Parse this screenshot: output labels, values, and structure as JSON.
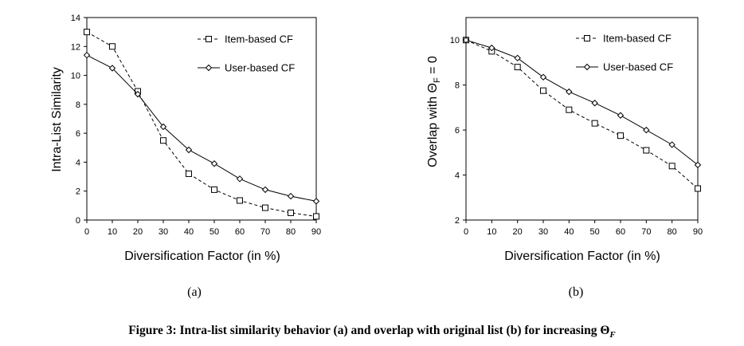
{
  "chart_data": [
    {
      "type": "line",
      "panel_label": "(a)",
      "x": [
        0,
        10,
        20,
        30,
        40,
        50,
        60,
        70,
        80,
        90
      ],
      "xlabel": "Diversification Factor (in %)",
      "ylabel": "Intra-List Similarity",
      "xticks": [
        "0",
        "10",
        "20",
        "30",
        "40",
        "50",
        "60",
        "70",
        "80",
        "90"
      ],
      "yticks": [
        "0",
        "2",
        "4",
        "6",
        "8",
        "10",
        "12",
        "14"
      ],
      "xlim": [
        0,
        90
      ],
      "ylim": [
        0,
        14
      ],
      "legend_position": "top-right",
      "series": [
        {
          "name": "Item-based CF",
          "style": "dashed",
          "marker": "square",
          "values": [
            13.0,
            12.0,
            8.9,
            5.5,
            3.2,
            2.1,
            1.35,
            0.85,
            0.5,
            0.25
          ]
        },
        {
          "name": "User-based CF",
          "style": "solid",
          "marker": "diamond",
          "values": [
            11.4,
            10.5,
            8.7,
            6.45,
            4.85,
            3.9,
            2.85,
            2.1,
            1.65,
            1.3
          ]
        }
      ]
    },
    {
      "type": "line",
      "panel_label": "(b)",
      "x": [
        0,
        10,
        20,
        30,
        40,
        50,
        60,
        70,
        80,
        90
      ],
      "xlabel": "Diversification Factor (in %)",
      "ylabel": "Overlap with  Θ",
      "ylabel_sub": "F",
      "ylabel_suffix": " = 0",
      "xticks": [
        "0",
        "10",
        "20",
        "30",
        "40",
        "50",
        "60",
        "70",
        "80",
        "90"
      ],
      "yticks": [
        "2",
        "4",
        "6",
        "8",
        "10"
      ],
      "xlim": [
        0,
        90
      ],
      "ylim": [
        2,
        11
      ],
      "legend_position": "top-right",
      "series": [
        {
          "name": "Item-based CF",
          "style": "dashed",
          "marker": "square",
          "values": [
            10.0,
            9.5,
            8.8,
            7.75,
            6.9,
            6.3,
            5.75,
            5.1,
            4.4,
            3.4
          ]
        },
        {
          "name": "User-based CF",
          "style": "solid",
          "marker": "diamond",
          "values": [
            10.0,
            9.65,
            9.2,
            8.35,
            7.7,
            7.2,
            6.65,
            6.0,
            5.35,
            4.45
          ]
        }
      ]
    }
  ],
  "caption": {
    "prefix": "Figure 3: Intra-list similarity behavior (a) and overlap with original list (b) for increasing Θ",
    "subscript": "F"
  }
}
